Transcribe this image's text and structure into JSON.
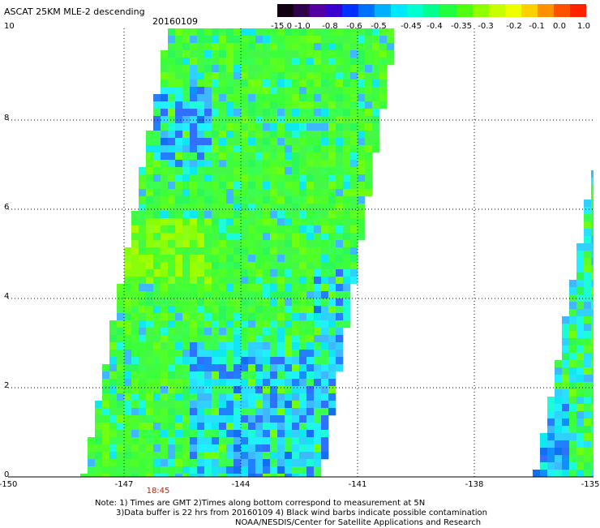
{
  "header": {
    "title": "ASCAT 25KM MLE-2 descending",
    "date": "20160109"
  },
  "colorbar": {
    "labels": [
      "-15.0",
      "-1.0",
      "-0.8",
      "-0.6",
      "-0.5",
      "-0.45",
      "-0.4",
      "-0.35",
      "-0.3",
      "-0.2",
      "-0.1",
      "0.0",
      "1.0"
    ],
    "colors": [
      "#100010",
      "#30004a",
      "#5500a0",
      "#3a00d0",
      "#0030ff",
      "#0070ff",
      "#00b0ff",
      "#00e8ff",
      "#00ffd0",
      "#00ff90",
      "#20ff40",
      "#50ff10",
      "#90ff00",
      "#c8ff00",
      "#f0ff00",
      "#ffd000",
      "#ff9000",
      "#ff5000",
      "#ff2000"
    ]
  },
  "axes": {
    "x_ticks": [
      "-150",
      "-147",
      "-144",
      "-141",
      "-138",
      "-135"
    ],
    "y_ticks": [
      "0",
      "2",
      "4",
      "6",
      "8",
      "10"
    ]
  },
  "time_label": "18:45",
  "notes": [
    "Note: 1) Times are GMT 2)Times along bottom correspond to measurement at 5N",
    "3)Data buffer is 22 hrs from 20160109 4) Black wind barbs indicate possible contamination",
    "NOAA/NESDIS/Center for Satellite Applications and Research"
  ]
}
